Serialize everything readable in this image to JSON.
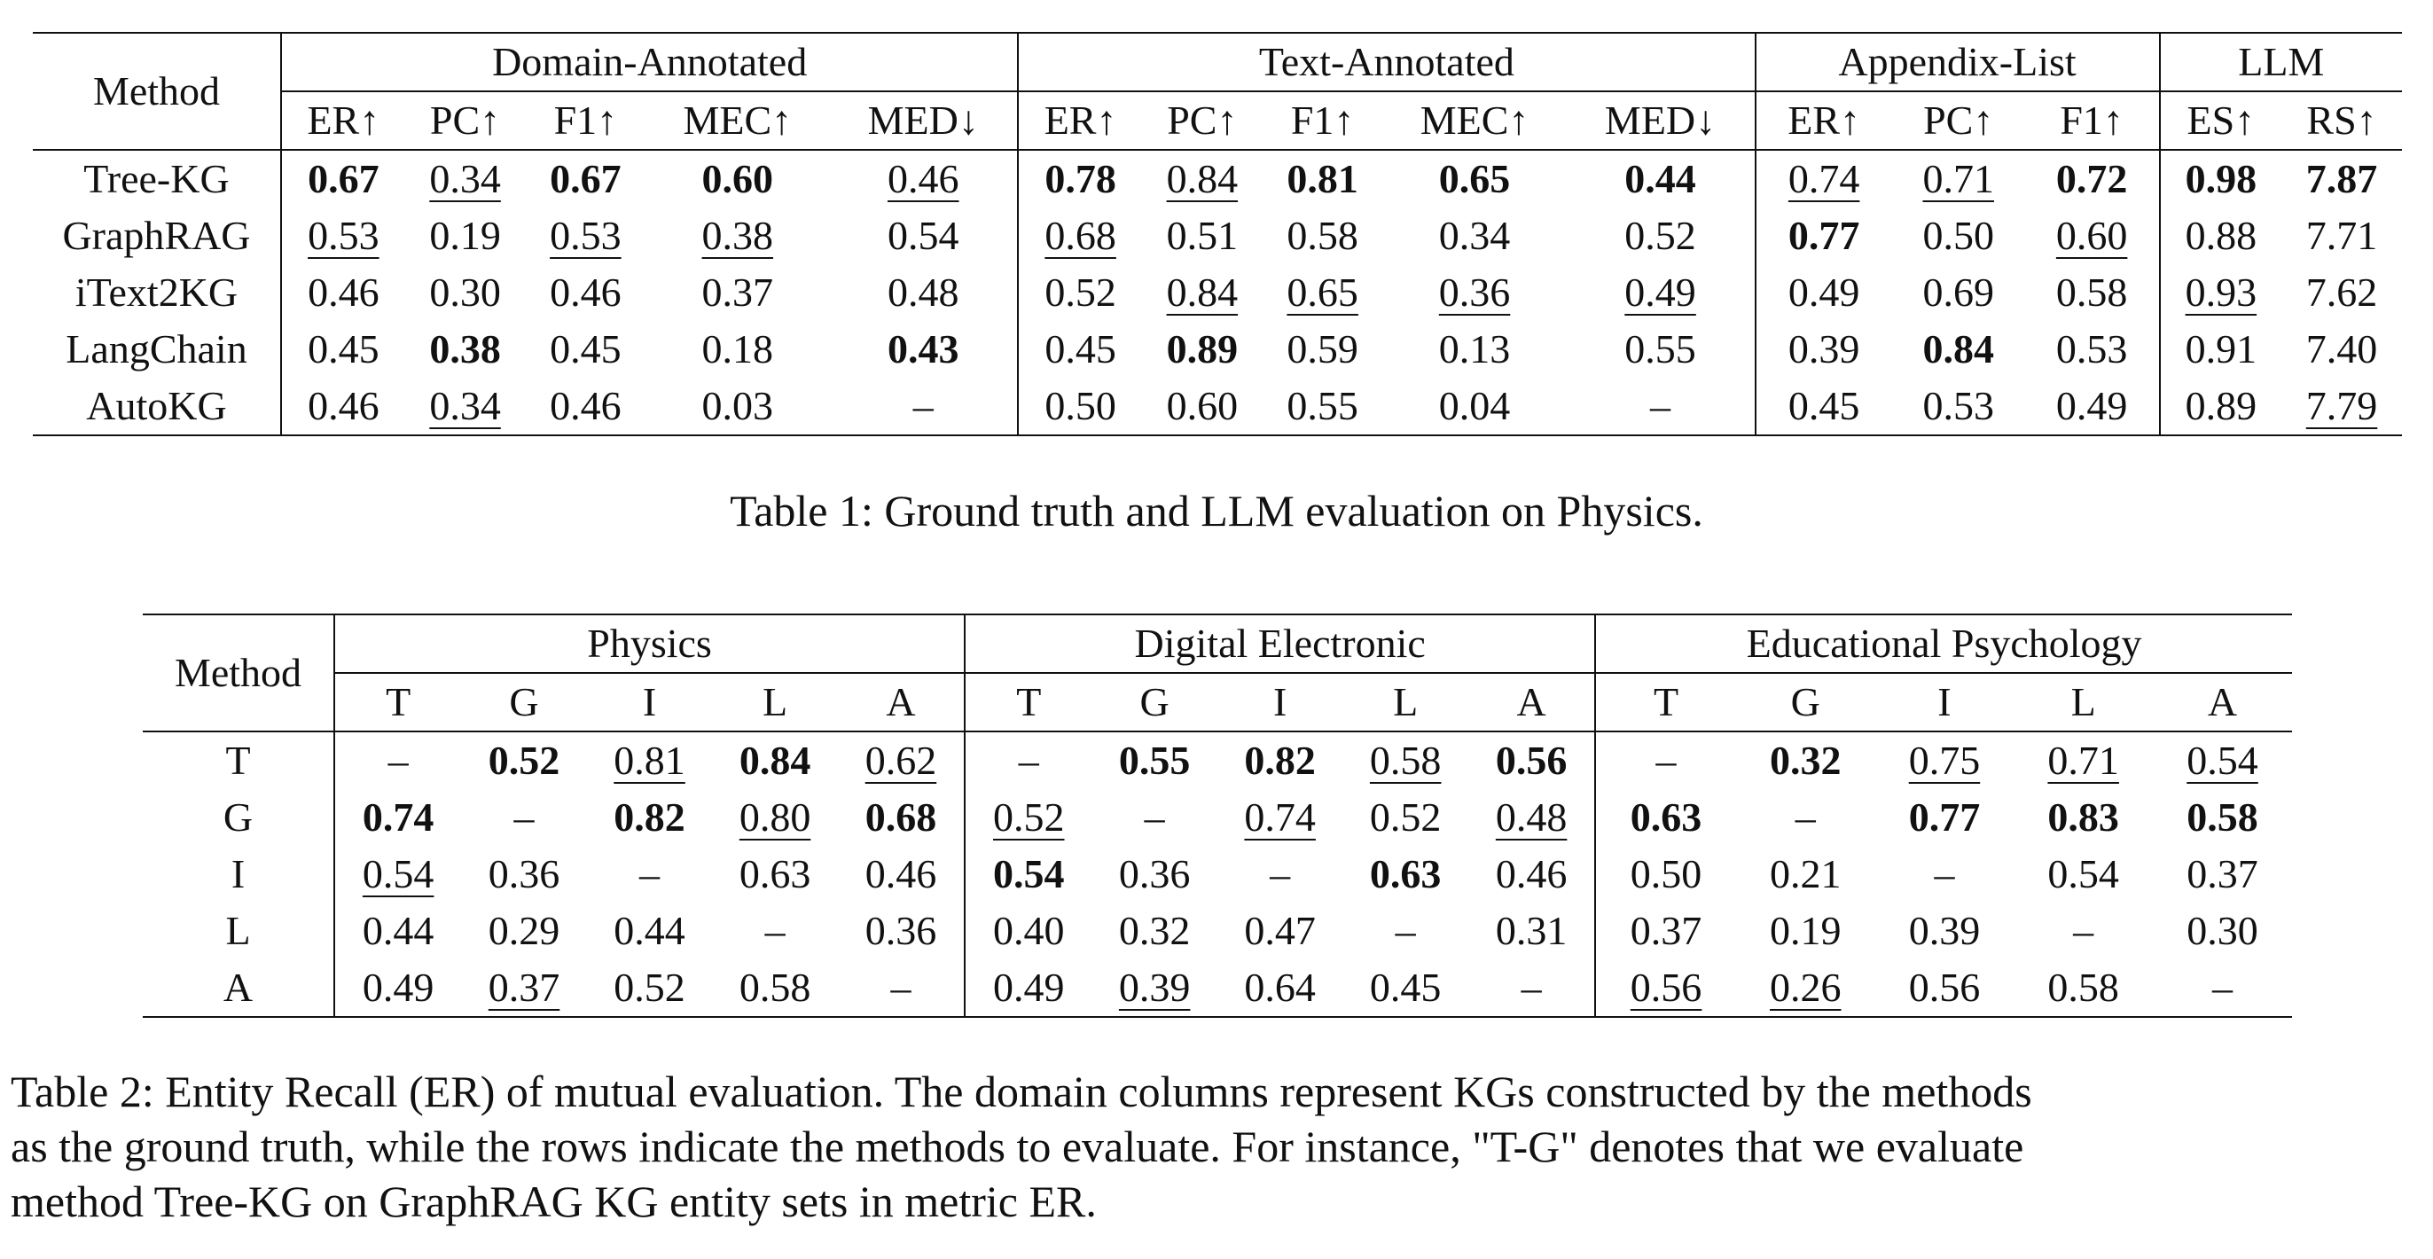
{
  "table1": {
    "method_header": "Method",
    "groups": [
      "Domain-Annotated",
      "Text-Annotated",
      "Appendix-List",
      "LLM"
    ],
    "subheaders": [
      "ER↑",
      "PC↑",
      "F1↑",
      "MEC↑",
      "MED↓",
      "ER↑",
      "PC↑",
      "F1↑",
      "MEC↑",
      "MED↓",
      "ER↑",
      "PC↑",
      "F1↑",
      "ES↑",
      "RS↑"
    ],
    "rows": [
      {
        "method": "Tree-KG",
        "cells": [
          "0.67",
          "0.34",
          "0.67",
          "0.60",
          "0.46",
          "0.78",
          "0.84",
          "0.81",
          "0.65",
          "0.44",
          "0.74",
          "0.71",
          "0.72",
          "0.98",
          "7.87"
        ]
      },
      {
        "method": "GraphRAG",
        "cells": [
          "0.53",
          "0.19",
          "0.53",
          "0.38",
          "0.54",
          "0.68",
          "0.51",
          "0.58",
          "0.34",
          "0.52",
          "0.77",
          "0.50",
          "0.60",
          "0.88",
          "7.71"
        ]
      },
      {
        "method": "iText2KG",
        "cells": [
          "0.46",
          "0.30",
          "0.46",
          "0.37",
          "0.48",
          "0.52",
          "0.84",
          "0.65",
          "0.36",
          "0.49",
          "0.49",
          "0.69",
          "0.58",
          "0.93",
          "7.62"
        ]
      },
      {
        "method": "LangChain",
        "cells": [
          "0.45",
          "0.38",
          "0.45",
          "0.18",
          "0.43",
          "0.45",
          "0.89",
          "0.59",
          "0.13",
          "0.55",
          "0.39",
          "0.84",
          "0.53",
          "0.91",
          "7.40"
        ]
      },
      {
        "method": "AutoKG",
        "cells": [
          "0.46",
          "0.34",
          "0.46",
          "0.03",
          "–",
          "0.50",
          "0.60",
          "0.55",
          "0.04",
          "–",
          "0.45",
          "0.53",
          "0.49",
          "0.89",
          "7.79"
        ]
      }
    ],
    "caption": "Table 1: Ground truth and LLM evaluation on Physics."
  },
  "table2": {
    "method_header": "Method",
    "groups": [
      "Physics",
      "Digital Electronic",
      "Educational Psychology"
    ],
    "subheaders": [
      "T",
      "G",
      "I",
      "L",
      "A",
      "T",
      "G",
      "I",
      "L",
      "A",
      "T",
      "G",
      "I",
      "L",
      "A"
    ],
    "rows": [
      {
        "method": "T",
        "cells": [
          "–",
          "0.52",
          "0.81",
          "0.84",
          "0.62",
          "–",
          "0.55",
          "0.82",
          "0.58",
          "0.56",
          "–",
          "0.32",
          "0.75",
          "0.71",
          "0.54"
        ]
      },
      {
        "method": "G",
        "cells": [
          "0.74",
          "–",
          "0.82",
          "0.80",
          "0.68",
          "0.52",
          "–",
          "0.74",
          "0.52",
          "0.48",
          "0.63",
          "–",
          "0.77",
          "0.83",
          "0.58"
        ]
      },
      {
        "method": "I",
        "cells": [
          "0.54",
          "0.36",
          "–",
          "0.63",
          "0.46",
          "0.54",
          "0.36",
          "–",
          "0.63",
          "0.46",
          "0.50",
          "0.21",
          "–",
          "0.54",
          "0.37"
        ]
      },
      {
        "method": "L",
        "cells": [
          "0.44",
          "0.29",
          "0.44",
          "–",
          "0.36",
          "0.40",
          "0.32",
          "0.47",
          "–",
          "0.31",
          "0.37",
          "0.19",
          "0.39",
          "–",
          "0.30"
        ]
      },
      {
        "method": "A",
        "cells": [
          "0.49",
          "0.37",
          "0.52",
          "0.58",
          "–",
          "0.49",
          "0.39",
          "0.64",
          "0.45",
          "–",
          "0.56",
          "0.26",
          "0.56",
          "0.58",
          "–"
        ]
      }
    ],
    "caption_lines": [
      "Table 2: Entity Recall (ER) of mutual evaluation. The domain columns represent KGs constructed by the methods",
      "as the ground truth, while the rows indicate the methods to evaluate. For instance, \"T-G\" denotes that we evaluate",
      "method Tree-KG on GraphRAG KG entity sets in metric ER."
    ]
  }
}
